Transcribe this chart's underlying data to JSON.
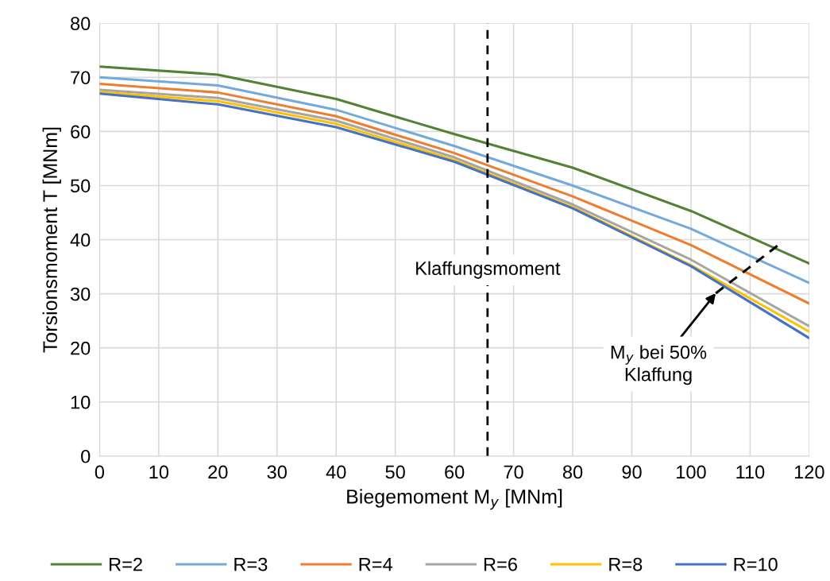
{
  "chart_data": {
    "type": "line",
    "xlabel": "Biegemoment M$_{y}$ [MNm]",
    "ylabel": "Torsionsmoment T [MNm]",
    "x": [
      0,
      20,
      40,
      60,
      80,
      100,
      120
    ],
    "series": [
      {
        "name": "R=2",
        "color": "#548235",
        "values": [
          72,
          70.5,
          66,
          59.5,
          53.3,
          45.3,
          35.6
        ]
      },
      {
        "name": "R=3",
        "color": "#74aadb",
        "values": [
          70,
          68.5,
          64,
          57.3,
          50,
          42,
          32
        ]
      },
      {
        "name": "R=4",
        "color": "#ed7d31",
        "values": [
          68.8,
          67.2,
          62.8,
          56,
          48,
          39,
          28.2
        ]
      },
      {
        "name": "R=6",
        "color": "#a5a5a5",
        "values": [
          67.7,
          66.2,
          62,
          55.2,
          46.5,
          36.3,
          24
        ]
      },
      {
        "name": "R=8",
        "color": "#ffc000",
        "values": [
          67.3,
          65.6,
          61.4,
          54.7,
          46,
          35.3,
          23
        ]
      },
      {
        "name": "R=10",
        "color": "#4472c4",
        "values": [
          67,
          65,
          60.8,
          54.4,
          45.8,
          35.1,
          21.8
        ]
      },
      {
        "color": "#000000",
        "x": [
          104.2,
          114.9
        ],
        "values": [
          30.1,
          39.1
        ],
        "line_style": "dashed"
      }
    ],
    "ref_lines": [
      {
        "axis": "x",
        "value": 65.6,
        "label": "Klaffungsmoment",
        "color": "#000000",
        "line_style": "dashed"
      }
    ],
    "annotations": [
      {
        "text": "M$_{y}$ bei 50%\nKlaffung",
        "x": 104.2,
        "y": 30.1
      }
    ],
    "xlim": [
      0,
      120
    ],
    "xticks": [
      0,
      10,
      20,
      30,
      40,
      50,
      60,
      70,
      80,
      90,
      100,
      110,
      120
    ],
    "ylim": [
      0,
      80
    ],
    "yticks": [
      0,
      10,
      20,
      30,
      40,
      50,
      60,
      70,
      80
    ],
    "grid": true,
    "legend": "bottom",
    "marker": "none",
    "line_style": "solid"
  }
}
